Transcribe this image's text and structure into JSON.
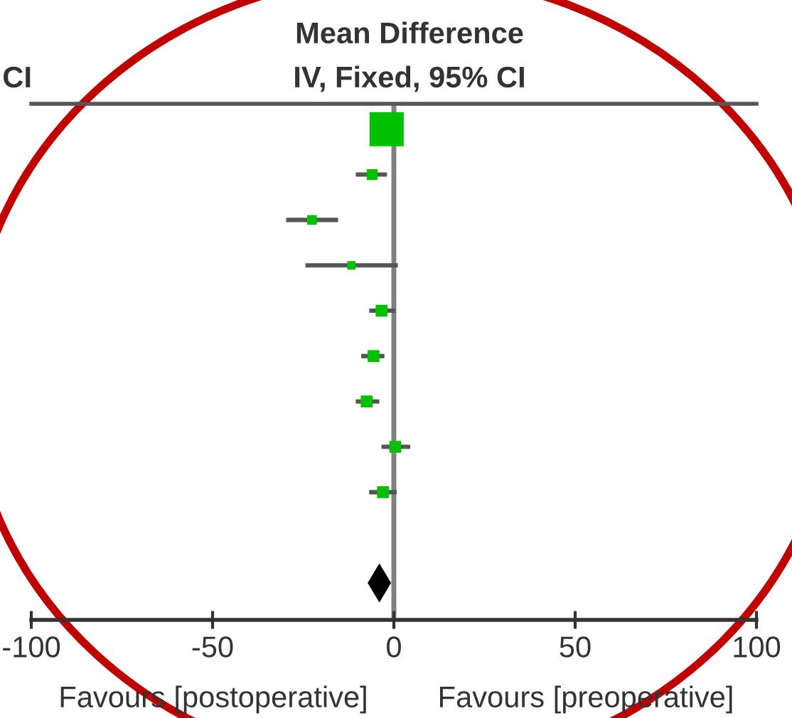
{
  "chart_data": {
    "type": "scatter",
    "orientation": "horizontal",
    "title": "Mean Difference",
    "subtitle": "IV, Fixed, 95% CI",
    "categories": [
      null,
      null,
      null,
      null,
      null,
      null,
      null,
      null,
      null,
      null,
      null
    ],
    "series": [
      {
        "type": "bubble",
        "marker": "square",
        "color": "#00c000",
        "values": [
          -2,
          -6,
          -22.6,
          -11.7,
          -3.4,
          -5.6,
          -7.5,
          0.4,
          -3,
          null,
          null
        ],
        "sizes": [
          1,
          0.1,
          0.08,
          0.06,
          0.12,
          0.12,
          0.12,
          0.12,
          0.12,
          null,
          null
        ],
        "errors": [
          null,
          [
            -10.5,
            -1.9
          ],
          [
            -29.7,
            -15.4
          ],
          [
            -24.4,
            1.1
          ],
          [
            -6.8,
            0.4
          ],
          [
            -9,
            -2.6
          ],
          [
            -10.5,
            -4
          ],
          [
            -3.4,
            4.5
          ],
          [
            -6.8,
            0.8
          ],
          null,
          null
        ]
      },
      {
        "type": "scatter",
        "marker": "diamond",
        "color": "#000000",
        "values": [
          null,
          null,
          null,
          null,
          null,
          null,
          null,
          null,
          null,
          null,
          -4
        ]
      }
    ],
    "xlim": [
      -100,
      100
    ],
    "xticks": [
      -100,
      -50,
      0,
      50,
      100
    ],
    "ref_lines": [
      {
        "axis": "x",
        "value": 0,
        "color": "#808080"
      }
    ],
    "annotations": [
      "CI",
      "Favours [postoperative]",
      "Favours [preoperative]"
    ],
    "tick_labels": "x",
    "grid": false
  }
}
